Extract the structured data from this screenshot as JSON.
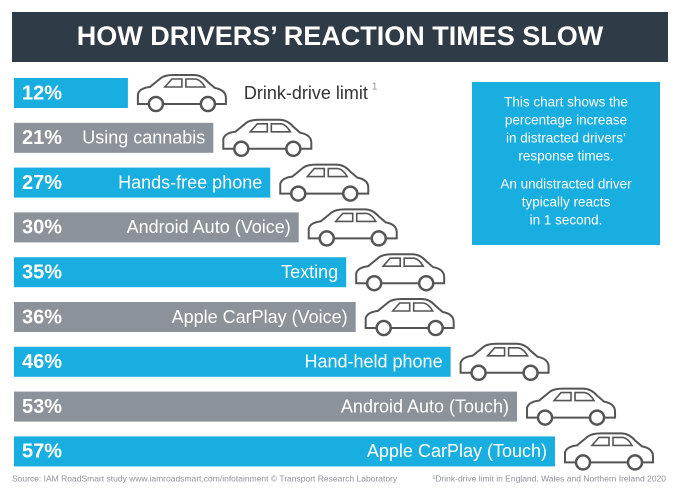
{
  "chart_data": {
    "type": "bar",
    "title": "HOW DRIVERS’ REACTION TIMES SLOW",
    "categories": [
      "Drink-drive limit",
      "Using cannabis",
      "Hands-free phone",
      "Android Auto (Voice)",
      "Texting",
      "Apple CarPlay (Voice)",
      "Hand-held phone",
      "Android Auto (Touch)",
      "Apple CarPlay (Touch)"
    ],
    "values": [
      12,
      21,
      27,
      30,
      35,
      36,
      46,
      53,
      57
    ],
    "value_labels": [
      "12%",
      "21%",
      "27%",
      "30%",
      "35%",
      "36%",
      "46%",
      "53%",
      "57%"
    ],
    "colors": [
      "#19aee0",
      "#8b9299",
      "#19aee0",
      "#8b9299",
      "#19aee0",
      "#8b9299",
      "#19aee0",
      "#8b9299",
      "#19aee0"
    ],
    "footnote_marker": "1",
    "note": [
      [
        "This chart shows the",
        "percentage increase",
        "in distracted drivers’",
        "response times."
      ],
      [
        "An undistracted driver",
        "typically reacts",
        "in 1 second."
      ]
    ],
    "source": "Source: IAM RoadSmart study www.iamroadsmart.com/infotainment   © Transport Research Laboratory",
    "footnote": "¹Drink-drive limit in England, Wales and Northern Ireland 2020"
  }
}
